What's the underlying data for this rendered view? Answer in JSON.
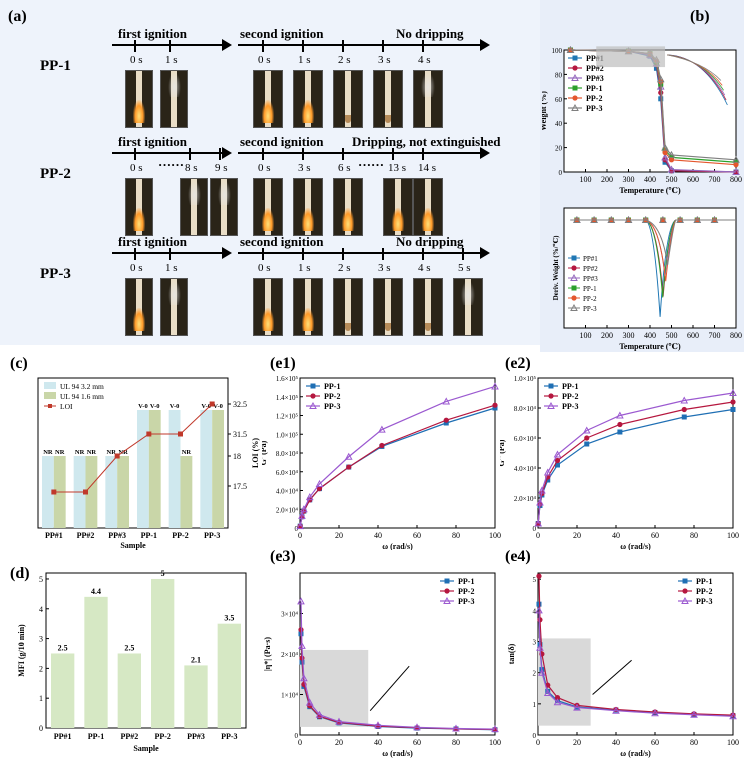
{
  "panels": {
    "a": "(a)",
    "b": "(b)",
    "c": "(c)",
    "d": "(d)",
    "e1": "(e1)",
    "e2": "(e2)",
    "e3": "(e3)",
    "e4": "(e4)"
  },
  "panel_a": {
    "rows": [
      {
        "sample": "PP-1",
        "first": "first ignition",
        "second": "second ignition",
        "result": "No dripping",
        "first_times": [
          "0 s",
          "1 s"
        ],
        "second_times": [
          "0 s",
          "1 s",
          "2 s",
          "3 s",
          "4 s"
        ]
      },
      {
        "sample": "PP-2",
        "first": "first ignition",
        "second": "second ignition",
        "result": "Dripping, not extinguished",
        "first_times": [
          "0 s",
          "8 s",
          "9 s"
        ],
        "second_times": [
          "0 s",
          "3 s",
          "6 s",
          "13 s",
          "14 s"
        ],
        "ellipsis": "……"
      },
      {
        "sample": "PP-3",
        "first": "first ignition",
        "second": "second ignition",
        "result": "No dripping",
        "first_times": [
          "0 s",
          "1 s"
        ],
        "second_times": [
          "0 s",
          "1 s",
          "2 s",
          "3 s",
          "4 s",
          "5 s"
        ]
      }
    ]
  },
  "chart_data": [
    {
      "id": "b-top",
      "type": "line",
      "xlabel": "Temperature (℃)",
      "ylabel": "Weight (%)",
      "xlim": [
        0,
        800
      ],
      "ylim": [
        0,
        100
      ],
      "xticks": [
        100,
        200,
        300,
        400,
        500,
        600,
        700,
        800
      ],
      "yticks": [
        0,
        20,
        40,
        60,
        80,
        100
      ],
      "series": [
        {
          "name": "PP#1",
          "color": "#1f77b4",
          "x": [
            30,
            300,
            400,
            430,
            450,
            470,
            500,
            800
          ],
          "values": [
            100,
            99,
            95,
            85,
            60,
            8,
            1,
            0
          ]
        },
        {
          "name": "PP#2",
          "color": "#b5173f",
          "x": [
            30,
            300,
            400,
            430,
            450,
            470,
            500,
            800
          ],
          "values": [
            100,
            99,
            96,
            88,
            65,
            10,
            1,
            0
          ]
        },
        {
          "name": "PP#3",
          "color": "#9467bd",
          "x": [
            30,
            300,
            400,
            430,
            450,
            470,
            500,
            800
          ],
          "values": [
            100,
            99,
            96,
            89,
            70,
            12,
            2,
            0
          ]
        },
        {
          "name": "PP-1",
          "color": "#2ca02c",
          "x": [
            30,
            300,
            400,
            430,
            450,
            470,
            500,
            800
          ],
          "values": [
            100,
            99,
            97,
            90,
            72,
            18,
            12,
            8
          ]
        },
        {
          "name": "PP-2",
          "color": "#e4572e",
          "x": [
            30,
            300,
            400,
            430,
            450,
            470,
            500,
            800
          ],
          "values": [
            100,
            99,
            97,
            91,
            74,
            16,
            10,
            6
          ]
        },
        {
          "name": "PP-3",
          "color": "#7f7f7f",
          "x": [
            30,
            300,
            400,
            430,
            450,
            470,
            500,
            800
          ],
          "values": [
            100,
            99,
            97,
            92,
            76,
            20,
            14,
            10
          ]
        }
      ]
    },
    {
      "id": "b-bottom",
      "type": "line",
      "xlabel": "Temperature (℃)",
      "ylabel": "Deriv. Weight (%/℃)",
      "xlim": [
        0,
        800
      ],
      "xticks": [
        100,
        200,
        300,
        400,
        500,
        600,
        700,
        800
      ],
      "series": [
        {
          "name": "PP#1",
          "color": "#1f77b4"
        },
        {
          "name": "PP#2",
          "color": "#b5173f"
        },
        {
          "name": "PP#3",
          "color": "#9467bd"
        },
        {
          "name": "PP-1",
          "color": "#2ca02c"
        },
        {
          "name": "PP-2",
          "color": "#e4572e"
        },
        {
          "name": "PP-3",
          "color": "#7f7f7f"
        }
      ],
      "peaks": [
        {
          "x": 455,
          "depth": 0.95
        },
        {
          "x": 465,
          "depth": 0.75
        },
        {
          "x": 470,
          "depth": 0.55
        }
      ]
    },
    {
      "id": "c",
      "type": "bar",
      "xlabel": "Sample",
      "ylabel": "LOI (%)",
      "categories": [
        "PP#1",
        "PP#2",
        "PP#3",
        "PP-1",
        "PP-2",
        "PP-3"
      ],
      "legend": [
        "UL 94 3.2 mm",
        "UL 94 1.6 mm",
        "LOI"
      ],
      "ul94_32": [
        "NR",
        "NR",
        "NR",
        "V-0",
        "V-0",
        "V-0"
      ],
      "ul94_16": [
        "NR",
        "NR",
        "NR",
        "V-0",
        "NR",
        "V-0"
      ],
      "loi": [
        17.4,
        17.4,
        18.0,
        31.5,
        31.5,
        32.5
      ],
      "yticks": [
        17.5,
        18,
        31.5,
        32.5
      ]
    },
    {
      "id": "d",
      "type": "bar",
      "xlabel": "Sample",
      "ylabel": "MFI (g/10 min)",
      "categories": [
        "PP#1",
        "PP-1",
        "PP#2",
        "PP-2",
        "PP#3",
        "PP-3"
      ],
      "values": [
        2.5,
        4.4,
        2.5,
        5,
        2.1,
        3.5
      ],
      "labels": [
        "2.5",
        "4.4",
        "2.5",
        "5",
        "2.1",
        "3.5"
      ],
      "ylim": [
        0,
        5.2
      ],
      "yticks": [
        0,
        1,
        2,
        3,
        4,
        5
      ]
    },
    {
      "id": "e1",
      "type": "line",
      "xlabel": "ω (rad/s)",
      "ylabel": "G' (Pa)",
      "xlim": [
        0,
        100
      ],
      "ylim": [
        0,
        160000
      ],
      "xticks": [
        0,
        20,
        40,
        60,
        80,
        100
      ],
      "yticks": [
        0,
        20000,
        40000,
        60000,
        80000,
        100000,
        120000,
        140000,
        160000
      ],
      "ytick_labels": [
        "0",
        "2.0×10⁴",
        "4.0×10⁴",
        "6.0×10⁴",
        "8.0×10⁴",
        "1.0×10⁵",
        "1.2×10⁵",
        "1.4×10⁵",
        "1.6×10⁵"
      ],
      "series": [
        {
          "name": "PP-1",
          "color": "#1f6fb4",
          "x": [
            0.1,
            1,
            2,
            5,
            10,
            25,
            42,
            75,
            100
          ],
          "values": [
            2000,
            12000,
            18000,
            30000,
            42000,
            65000,
            87000,
            112000,
            128000
          ]
        },
        {
          "name": "PP-2",
          "color": "#b5173f",
          "x": [
            0.1,
            1,
            2,
            5,
            10,
            25,
            42,
            75,
            100
          ],
          "values": [
            2000,
            12000,
            18000,
            30000,
            42000,
            65000,
            88000,
            115000,
            131000
          ]
        },
        {
          "name": "PP-3",
          "color": "#9b59d0",
          "x": [
            0.1,
            1,
            2,
            5,
            10,
            25,
            42,
            75,
            100
          ],
          "values": [
            2000,
            13000,
            20000,
            33000,
            47000,
            76000,
            105000,
            135000,
            151000
          ]
        }
      ]
    },
    {
      "id": "e2",
      "type": "line",
      "xlabel": "ω (rad/s)",
      "ylabel": "G'' (Pa)",
      "xlim": [
        0,
        100
      ],
      "ylim": [
        0,
        100000
      ],
      "xticks": [
        0,
        20,
        40,
        60,
        80,
        100
      ],
      "yticks": [
        0,
        20000,
        40000,
        60000,
        80000,
        100000
      ],
      "ytick_labels": [
        "0",
        "2.0×10⁴",
        "4.0×10⁴",
        "6.0×10⁴",
        "8.0×10⁴",
        "1.0×10⁵"
      ],
      "series": [
        {
          "name": "PP-1",
          "color": "#1f6fb4",
          "x": [
            0.1,
            1,
            2,
            5,
            10,
            25,
            42,
            75,
            100
          ],
          "values": [
            3000,
            15000,
            22000,
            32000,
            42000,
            56000,
            64000,
            74000,
            79000
          ]
        },
        {
          "name": "PP-2",
          "color": "#b5173f",
          "x": [
            0.1,
            1,
            2,
            5,
            10,
            25,
            42,
            75,
            100
          ],
          "values": [
            3000,
            16000,
            23000,
            34000,
            45000,
            60000,
            69000,
            79000,
            84000
          ]
        },
        {
          "name": "PP-3",
          "color": "#9b59d0",
          "x": [
            0.1,
            1,
            2,
            5,
            10,
            25,
            42,
            75,
            100
          ],
          "values": [
            3000,
            17000,
            25000,
            37000,
            49000,
            65000,
            75000,
            85000,
            90000
          ]
        }
      ]
    },
    {
      "id": "e3",
      "type": "line",
      "xlabel": "ω (rad/s)",
      "ylabel": "|η*| (Pa·s)",
      "xlim": [
        0,
        100
      ],
      "ylim": [
        0,
        40000
      ],
      "xticks": [
        0,
        20,
        40,
        60,
        80,
        100
      ],
      "yticks": [
        0,
        10000,
        20000,
        30000
      ],
      "ytick_labels": [
        "0",
        "1×10⁴",
        "2×10⁴",
        "3×10⁴"
      ],
      "series": [
        {
          "name": "PP-1",
          "color": "#1f6fb4",
          "x": [
            0.5,
            1,
            2,
            5,
            10,
            20,
            40,
            60,
            80,
            100
          ],
          "values": [
            25000,
            18000,
            12000,
            7000,
            4500,
            3000,
            2100,
            1700,
            1500,
            1300
          ]
        },
        {
          "name": "PP-2",
          "color": "#b5173f",
          "x": [
            0.5,
            1,
            2,
            5,
            10,
            20,
            40,
            60,
            80,
            100
          ],
          "values": [
            26000,
            19000,
            12500,
            7200,
            4600,
            3100,
            2200,
            1800,
            1500,
            1350
          ]
        },
        {
          "name": "PP-3",
          "color": "#9b59d0",
          "x": [
            0.5,
            1,
            2,
            5,
            10,
            20,
            40,
            60,
            80,
            100
          ],
          "values": [
            33000,
            22000,
            14000,
            8000,
            5000,
            3300,
            2400,
            1900,
            1600,
            1450
          ]
        }
      ]
    },
    {
      "id": "e4",
      "type": "line",
      "xlabel": "ω (rad/s)",
      "ylabel": "tan(δ)",
      "xlim": [
        0,
        100
      ],
      "ylim": [
        0,
        5.2
      ],
      "xticks": [
        0,
        20,
        40,
        60,
        80,
        100
      ],
      "yticks": [
        0,
        1,
        2,
        3,
        4,
        5
      ],
      "series": [
        {
          "name": "PP-1",
          "color": "#1f6fb4",
          "x": [
            0.5,
            1,
            2,
            5,
            10,
            20,
            40,
            60,
            80,
            100
          ],
          "values": [
            4.2,
            2.9,
            2.1,
            1.4,
            1.1,
            0.9,
            0.8,
            0.72,
            0.66,
            0.62
          ]
        },
        {
          "name": "PP-2",
          "color": "#b5173f",
          "x": [
            0.5,
            1,
            2,
            5,
            10,
            20,
            40,
            60,
            80,
            100
          ],
          "values": [
            5.1,
            3.7,
            2.6,
            1.6,
            1.2,
            0.95,
            0.82,
            0.74,
            0.68,
            0.64
          ]
        },
        {
          "name": "PP-3",
          "color": "#9b59d0",
          "x": [
            0.5,
            1,
            2,
            5,
            10,
            20,
            40,
            60,
            80,
            100
          ],
          "values": [
            4.0,
            2.8,
            2.0,
            1.35,
            1.05,
            0.88,
            0.78,
            0.7,
            0.65,
            0.6
          ]
        }
      ]
    }
  ]
}
